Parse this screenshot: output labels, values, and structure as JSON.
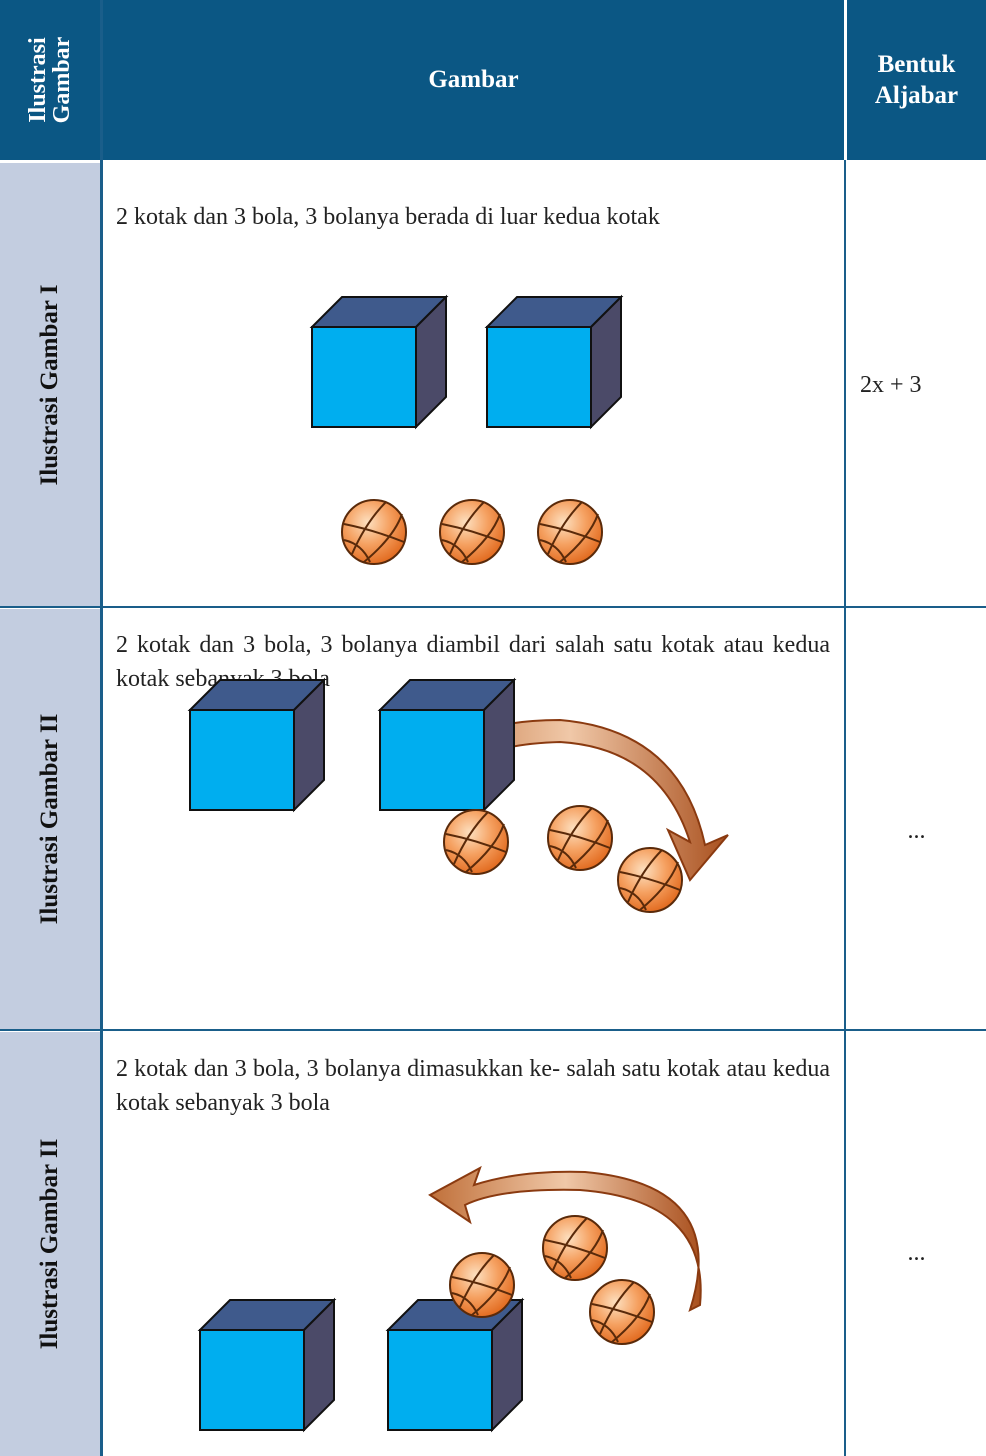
{
  "table": {
    "header": [
      "Ilustrasi\nGambar",
      "Gambar",
      "Bentuk\nAljabar"
    ],
    "rows": [
      {
        "label": "Ilustrasi Gambar I",
        "description": "2 kotak dan 3 bola, 3 bolanya berada di luar kedua kotak",
        "answer": "2x + 3"
      },
      {
        "label": "Ilustrasi Gambar II",
        "description": "2 kotak dan 3 bola, 3 bolanya diambil dari salah satu kotak atau kedua kotak sebanyak 3 bola",
        "answer": "..."
      },
      {
        "label": "Ilustrasi Gambar II",
        "description": "2 kotak dan 3 bola, 3 bolanya dimasukkan ke- salah satu kotak  atau kedua kotak sebanyak 3 bola",
        "answer": "..."
      }
    ]
  }
}
